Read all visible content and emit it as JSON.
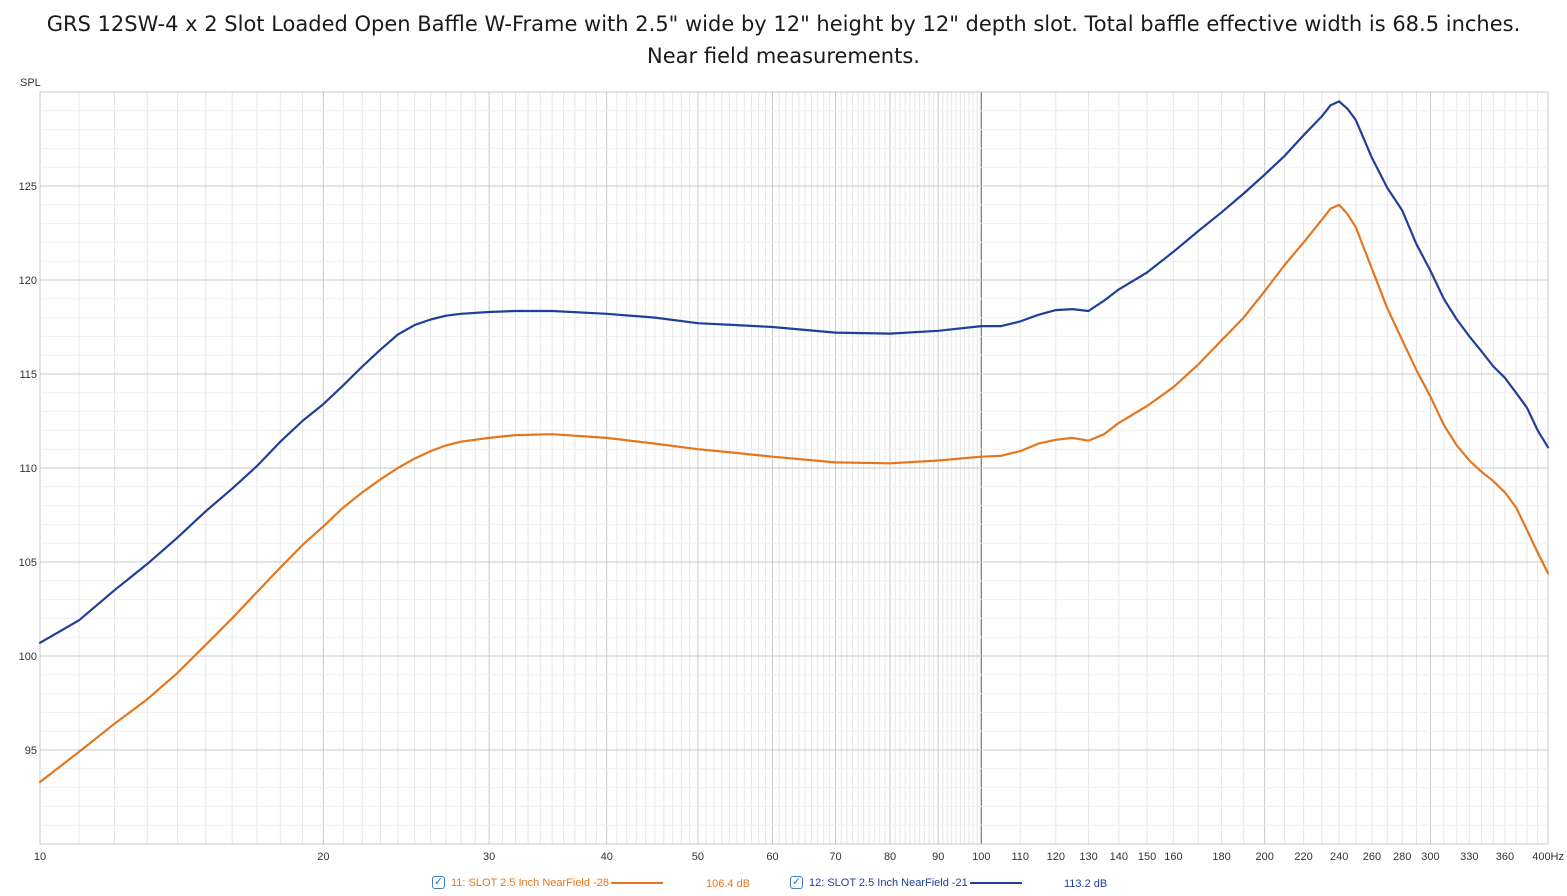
{
  "chart_data": {
    "type": "line",
    "title_line1": "GRS 12SW-4 x 2 Slot Loaded Open Baffle W-Frame with 2.5\" wide by 12\" height by 12\" depth slot. Total baffle effective width is 68.5 inches.",
    "title_line2": "Near field measurements.",
    "ylabel": "SPL",
    "x_unit": "Hz",
    "x_scale": "log",
    "xlim": [
      10,
      400
    ],
    "ylim": [
      90,
      130
    ],
    "y_ticks": [
      "95",
      "100",
      "105",
      "110",
      "115",
      "120",
      "125"
    ],
    "x_ticks": [
      "10",
      "20",
      "30",
      "40",
      "50",
      "60",
      "70",
      "80",
      "90",
      "100",
      "110",
      "120",
      "130",
      "140",
      "150",
      "160",
      "180",
      "200",
      "220",
      "240",
      "260",
      "280",
      "300",
      "330",
      "360",
      "400Hz"
    ],
    "grid": true,
    "legend_position": "bottom",
    "series": [
      {
        "name": "11: SLOT 2.5 Inch NearField -28",
        "value_label": "106.4 dB",
        "color": "#e5761e",
        "x": [
          10,
          11,
          12,
          13,
          14,
          15,
          16,
          17,
          18,
          19,
          20,
          21,
          22,
          23,
          24,
          25,
          26,
          27,
          28,
          30,
          32,
          35,
          40,
          45,
          50,
          55,
          60,
          70,
          80,
          90,
          100,
          105,
          110,
          115,
          120,
          125,
          130,
          135,
          140,
          150,
          160,
          170,
          180,
          190,
          200,
          210,
          220,
          230,
          235,
          240,
          245,
          250,
          260,
          270,
          280,
          290,
          300,
          310,
          320,
          330,
          340,
          350,
          360,
          370,
          380,
          390,
          400
        ],
        "y": [
          93.3,
          94.9,
          96.4,
          97.7,
          99.1,
          100.6,
          102.0,
          103.4,
          104.7,
          105.9,
          106.9,
          107.9,
          108.7,
          109.4,
          110.0,
          110.5,
          110.9,
          111.2,
          111.4,
          111.6,
          111.75,
          111.8,
          111.6,
          111.3,
          111.0,
          110.8,
          110.6,
          110.3,
          110.25,
          110.4,
          110.6,
          110.65,
          110.9,
          111.3,
          111.5,
          111.6,
          111.45,
          111.8,
          112.4,
          113.3,
          114.3,
          115.5,
          116.8,
          118.0,
          119.4,
          120.8,
          122.0,
          123.2,
          123.8,
          124.0,
          123.5,
          122.8,
          120.6,
          118.5,
          116.8,
          115.2,
          113.8,
          112.3,
          111.2,
          110.4,
          109.8,
          109.3,
          108.7,
          107.9,
          106.7,
          105.5,
          104.4
        ]
      },
      {
        "name": "12: SLOT 2.5 Inch NearField -21",
        "value_label": "113.2 dB",
        "color": "#1f3f99",
        "x": [
          10,
          11,
          12,
          13,
          14,
          15,
          16,
          17,
          18,
          19,
          20,
          21,
          22,
          23,
          24,
          25,
          26,
          27,
          28,
          30,
          32,
          35,
          40,
          45,
          50,
          55,
          60,
          70,
          80,
          90,
          100,
          105,
          110,
          115,
          120,
          125,
          130,
          135,
          140,
          150,
          160,
          170,
          180,
          190,
          200,
          210,
          220,
          230,
          235,
          240,
          245,
          250,
          260,
          270,
          280,
          290,
          300,
          310,
          320,
          330,
          340,
          350,
          360,
          370,
          380,
          390,
          400
        ],
        "y": [
          100.7,
          101.9,
          103.5,
          104.9,
          106.3,
          107.7,
          108.9,
          110.1,
          111.4,
          112.5,
          113.4,
          114.4,
          115.4,
          116.3,
          117.1,
          117.6,
          117.9,
          118.1,
          118.2,
          118.3,
          118.35,
          118.35,
          118.2,
          118.0,
          117.7,
          117.6,
          117.5,
          117.2,
          117.15,
          117.3,
          117.55,
          117.55,
          117.8,
          118.15,
          118.4,
          118.45,
          118.35,
          118.9,
          119.5,
          120.4,
          121.5,
          122.6,
          123.6,
          124.6,
          125.6,
          126.6,
          127.7,
          128.7,
          129.3,
          129.5,
          129.1,
          128.5,
          126.5,
          124.9,
          123.7,
          121.9,
          120.5,
          119.0,
          117.9,
          117.0,
          116.2,
          115.4,
          114.8,
          114.0,
          113.2,
          112.0,
          111.1
        ]
      }
    ]
  }
}
